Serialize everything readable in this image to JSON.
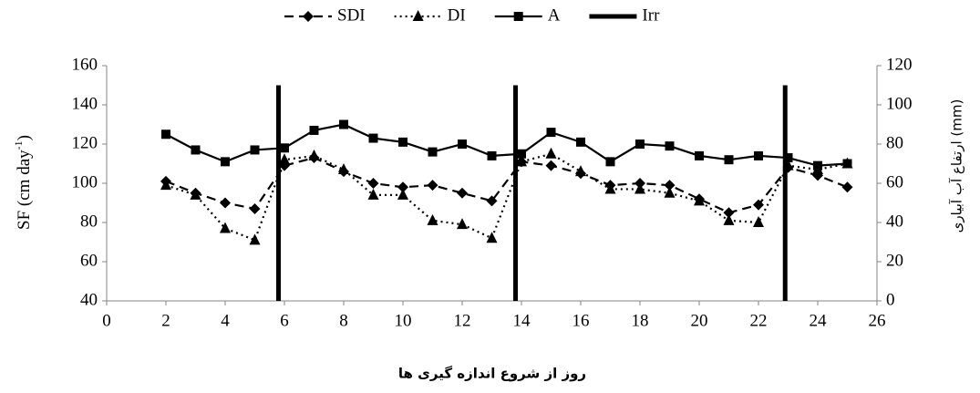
{
  "chart_data": {
    "type": "line",
    "x_label": "روز از شروع اندازه گیری ها",
    "y_label": [
      "SF (cm day",
      "-1",
      ")"
    ],
    "y2_label": "ارتفاع آب آبیاری (mm)",
    "xlim": [
      0,
      26
    ],
    "xticks": [
      0,
      2,
      4,
      6,
      8,
      10,
      12,
      14,
      16,
      18,
      20,
      22,
      24,
      26
    ],
    "ylim": [
      40,
      160
    ],
    "yticks": [
      40,
      60,
      80,
      100,
      120,
      140,
      160
    ],
    "y2lim": [
      0,
      120
    ],
    "y2ticks": [
      0,
      20,
      40,
      60,
      80,
      100,
      120
    ],
    "grid": false,
    "legend": "top",
    "x": [
      2,
      3,
      4,
      5,
      6,
      7,
      8,
      9,
      10,
      11,
      12,
      13,
      14,
      15,
      16,
      17,
      18,
      19,
      20,
      21,
      22,
      23,
      24,
      25
    ],
    "series": [
      {
        "name": "SDI",
        "color": "#000000",
        "dash": "dashed",
        "marker": "diamond",
        "values": [
          101,
          95,
          90,
          87,
          109,
          113,
          106,
          100,
          98,
          99,
          95,
          91,
          111,
          109,
          105,
          99,
          100,
          99,
          92,
          85,
          89,
          108,
          104,
          98
        ]
      },
      {
        "name": "DI",
        "color": "#000000",
        "dash": "dotted",
        "marker": "triangle",
        "values": [
          99,
          94,
          77,
          71,
          112,
          114,
          107,
          94,
          94,
          81,
          79,
          72,
          111,
          115,
          106,
          97,
          97,
          95,
          91,
          81,
          80,
          109,
          107,
          110
        ]
      },
      {
        "name": "A",
        "color": "#000000",
        "dash": "solid",
        "marker": "square",
        "values": [
          125,
          117,
          111,
          117,
          118,
          127,
          130,
          123,
          121,
          116,
          120,
          114,
          115,
          126,
          121,
          111,
          120,
          119,
          114,
          112,
          114,
          113,
          109,
          110
        ]
      },
      {
        "name": "Irr",
        "color": "#000000",
        "dash": "bar",
        "marker": "none",
        "axis": "y2",
        "x": [
          5.8,
          13.8,
          22.9
        ],
        "values": [
          110,
          110,
          110
        ]
      }
    ]
  }
}
